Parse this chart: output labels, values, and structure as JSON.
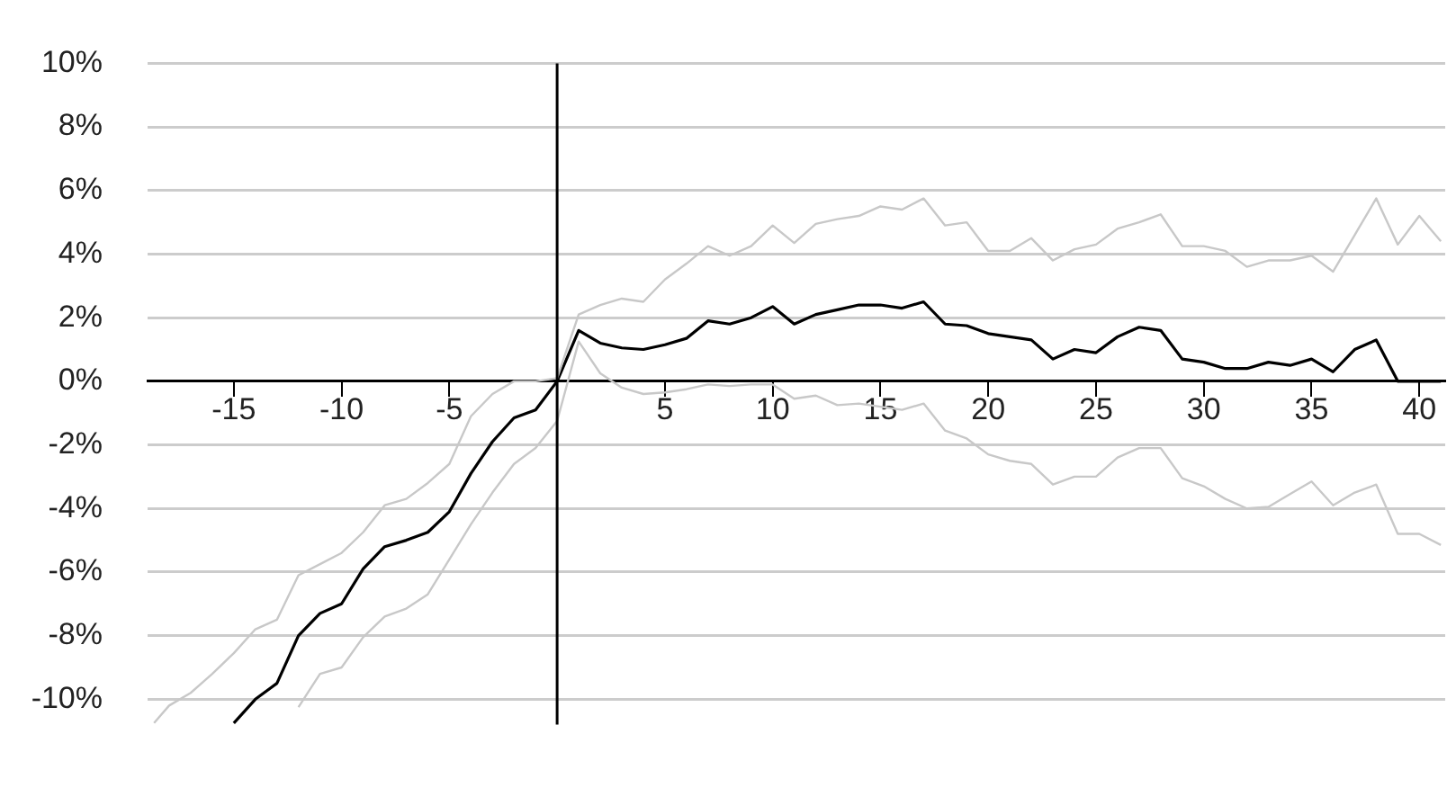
{
  "chart_data": {
    "type": "line",
    "xlim": [
      -19,
      41.2
    ],
    "ylim": [
      -10.8,
      10
    ],
    "xticks": [
      -15,
      -10,
      -5,
      5,
      10,
      15,
      20,
      25,
      30,
      35,
      40
    ],
    "yticks": [
      {
        "value": 10,
        "label": "10%"
      },
      {
        "value": 8,
        "label": "8%"
      },
      {
        "value": 6,
        "label": "6%"
      },
      {
        "value": 4,
        "label": "4%"
      },
      {
        "value": 2,
        "label": "2%"
      },
      {
        "value": 0,
        "label": "0%"
      },
      {
        "value": -2,
        "label": "-2%"
      },
      {
        "value": -4,
        "label": "-4%"
      },
      {
        "value": -6,
        "label": "-6%"
      },
      {
        "value": -8,
        "label": "-8%"
      },
      {
        "value": -10,
        "label": "-10%"
      }
    ],
    "grid": "y",
    "legend": false,
    "marker": "none",
    "line_style": "solid",
    "ref_lines": [
      {
        "axis": "x",
        "value": 0,
        "color": "#000000"
      }
    ],
    "series": [
      {
        "color": "#c8c8c8",
        "x": [
          -18.7,
          -18,
          -17,
          -16,
          -15,
          -14,
          -13,
          -12,
          -11,
          -10,
          -9,
          -8,
          -7,
          -6,
          -5,
          -4,
          -3,
          -2,
          -1,
          0,
          1,
          2,
          3,
          4,
          5,
          6,
          7,
          8,
          9,
          10,
          11,
          12,
          13,
          14,
          15,
          16,
          17,
          18,
          19,
          20,
          21,
          22,
          23,
          24,
          25,
          26,
          27,
          28,
          29,
          30,
          31,
          32,
          33,
          34,
          35,
          36,
          37,
          38,
          39,
          40,
          41
        ],
        "values": [
          -10.75,
          -10.2,
          -9.8,
          -9.2,
          -8.55,
          -7.8,
          -7.5,
          -6.1,
          -5.75,
          -5.4,
          -4.75,
          -3.9,
          -3.7,
          -3.2,
          -2.6,
          -1.1,
          -0.4,
          0,
          0,
          0.1,
          2.1,
          2.4,
          2.6,
          2.5,
          3.2,
          3.7,
          4.25,
          3.95,
          4.25,
          4.9,
          4.35,
          4.95,
          5.1,
          5.2,
          5.5,
          5.4,
          5.75,
          4.9,
          5.0,
          4.1,
          4.1,
          4.5,
          3.8,
          4.15,
          4.3,
          4.8,
          5.0,
          5.25,
          4.25,
          4.25,
          4.1,
          3.6,
          3.8,
          3.8,
          3.95,
          3.45,
          4.6,
          5.75,
          4.3,
          5.2,
          4.4
        ]
      },
      {
        "color": "#c8c8c8",
        "x": [
          -12,
          -11,
          -10,
          -9,
          -8,
          -7,
          -6,
          -5,
          -4,
          -3,
          -2,
          -1,
          0,
          1,
          2,
          3,
          4,
          5,
          6,
          7,
          8,
          9,
          10,
          11,
          12,
          13,
          14,
          15,
          16,
          17,
          18,
          19,
          20,
          21,
          22,
          23,
          24,
          25,
          26,
          27,
          28,
          29,
          30,
          31,
          32,
          33,
          34,
          35,
          36,
          37,
          38,
          39,
          40,
          41
        ],
        "values": [
          -10.25,
          -9.2,
          -9.0,
          -8.05,
          -7.4,
          -7.15,
          -6.7,
          -5.6,
          -4.5,
          -3.5,
          -2.6,
          -2.1,
          -1.25,
          1.25,
          0.25,
          -0.2,
          -0.4,
          -0.35,
          -0.25,
          -0.1,
          -0.15,
          -0.1,
          -0.1,
          -0.55,
          -0.45,
          -0.75,
          -0.7,
          -0.8,
          -0.9,
          -0.7,
          -1.55,
          -1.8,
          -2.3,
          -2.5,
          -2.6,
          -3.25,
          -3.0,
          -3.0,
          -2.4,
          -2.1,
          -2.1,
          -3.05,
          -3.3,
          -3.7,
          -4.0,
          -3.95,
          -3.55,
          -3.15,
          -3.9,
          -3.5,
          -3.25,
          -4.8,
          -4.8,
          -5.15
        ]
      },
      {
        "color": "#000000",
        "x": [
          -15,
          -14,
          -13,
          -12,
          -11,
          -10,
          -9,
          -8,
          -7,
          -6,
          -5,
          -4,
          -3,
          -2,
          -1,
          0,
          1,
          2,
          3,
          4,
          5,
          6,
          7,
          8,
          9,
          10,
          11,
          12,
          13,
          14,
          15,
          16,
          17,
          18,
          19,
          20,
          21,
          22,
          23,
          24,
          25,
          26,
          27,
          28,
          29,
          30,
          31,
          32,
          33,
          34,
          35,
          36,
          37,
          38,
          39,
          40,
          41
        ],
        "values": [
          -10.75,
          -10.0,
          -9.5,
          -8.0,
          -7.3,
          -7.0,
          -5.9,
          -5.2,
          -5.0,
          -4.75,
          -4.1,
          -2.9,
          -1.9,
          -1.15,
          -0.9,
          0,
          1.6,
          1.2,
          1.05,
          1.0,
          1.15,
          1.35,
          1.9,
          1.8,
          2.0,
          2.35,
          1.8,
          2.1,
          2.25,
          2.4,
          2.4,
          2.3,
          2.5,
          1.8,
          1.75,
          1.5,
          1.4,
          1.3,
          0.7,
          1.0,
          0.9,
          1.4,
          1.7,
          1.6,
          0.7,
          0.6,
          0.4,
          0.4,
          0.6,
          0.5,
          0.7,
          0.3,
          1.0,
          1.3,
          0,
          0,
          0
        ]
      }
    ]
  }
}
